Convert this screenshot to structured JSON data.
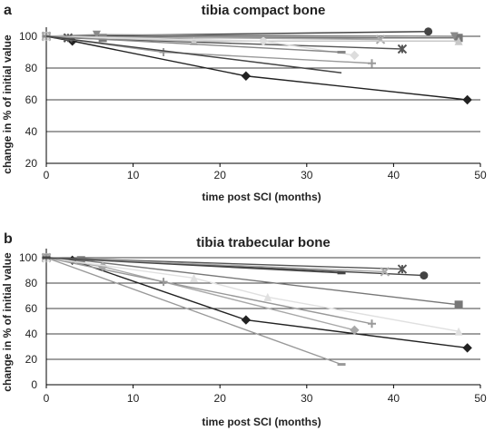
{
  "chart_data": [
    {
      "panel": "a",
      "type": "line",
      "title": "tibia compact bone",
      "xlabel": "time post SCI (months)",
      "ylabel": "change in % of initial value",
      "xlim": [
        0,
        50
      ],
      "ylim": [
        20,
        110
      ],
      "xticks": [
        "0",
        "10",
        "20",
        "30",
        "40",
        "50"
      ],
      "yticks": [
        "20",
        "40",
        "60",
        "80",
        "100"
      ],
      "grid": "horizontal",
      "series": [
        {
          "marker": "diamond",
          "color": "#222222",
          "points": [
            [
              0,
              100
            ],
            [
              3,
              97
            ],
            [
              23,
              75
            ],
            [
              48.5,
              60
            ]
          ]
        },
        {
          "marker": "circle",
          "color": "#444444",
          "points": [
            [
              0,
              100
            ],
            [
              44,
              103
            ]
          ]
        },
        {
          "marker": "square",
          "color": "#777777",
          "points": [
            [
              0,
              100
            ],
            [
              6.5,
              99
            ],
            [
              47.5,
              99
            ]
          ]
        },
        {
          "marker": "triangle-down",
          "color": "#8a8a8a",
          "points": [
            [
              0,
              100
            ],
            [
              5.8,
              101
            ],
            [
              47,
              100
            ]
          ]
        },
        {
          "marker": "asterisk",
          "color": "#555555",
          "points": [
            [
              0,
              100
            ],
            [
              2.5,
              99
            ],
            [
              41,
              92
            ]
          ]
        },
        {
          "marker": "cross",
          "color": "#aaaaaa",
          "points": [
            [
              0,
              100
            ],
            [
              38.5,
              98
            ]
          ]
        },
        {
          "marker": "triangle",
          "color": "#c8c8c8",
          "points": [
            [
              0,
              100
            ],
            [
              17,
              97
            ],
            [
              47.5,
              97
            ]
          ]
        },
        {
          "marker": "diamond",
          "color": "#dddddd",
          "points": [
            [
              0,
              100
            ],
            [
              25,
              97
            ],
            [
              35.5,
              88
            ]
          ]
        },
        {
          "marker": "plus",
          "color": "#999999",
          "points": [
            [
              0,
              100
            ],
            [
              13.5,
              90
            ],
            [
              37.5,
              83
            ]
          ]
        },
        {
          "marker": "dash",
          "color": "#888888",
          "points": [
            [
              0,
              100
            ],
            [
              34,
              90
            ]
          ]
        },
        {
          "marker": "none",
          "color": "#444444",
          "points": [
            [
              0,
              100
            ],
            [
              34,
              77
            ]
          ]
        }
      ]
    },
    {
      "panel": "b",
      "type": "line",
      "title": "tibia trabecular bone",
      "xlabel": "time post SCI (months)",
      "ylabel": "change in % of initial value",
      "xlim": [
        0,
        50
      ],
      "ylim": [
        0,
        110
      ],
      "xticks": [
        "0",
        "10",
        "20",
        "30",
        "40",
        "50"
      ],
      "yticks": [
        "0",
        "20",
        "40",
        "60",
        "80",
        "100"
      ],
      "grid": "horizontal",
      "series": [
        {
          "marker": "diamond",
          "color": "#222222",
          "points": [
            [
              0,
              100
            ],
            [
              3,
              98
            ],
            [
              23,
              51
            ],
            [
              48.5,
              29
            ]
          ]
        },
        {
          "marker": "circle",
          "color": "#444444",
          "points": [
            [
              0,
              100
            ],
            [
              43.5,
              86
            ]
          ]
        },
        {
          "marker": "square",
          "color": "#777777",
          "points": [
            [
              0,
              100
            ],
            [
              4,
              98
            ],
            [
              47.5,
              63
            ]
          ]
        },
        {
          "marker": "asterisk",
          "color": "#555555",
          "points": [
            [
              0,
              100
            ],
            [
              41,
              91
            ]
          ]
        },
        {
          "marker": "cross",
          "color": "#aaaaaa",
          "points": [
            [
              0,
              100
            ],
            [
              39,
              89
            ]
          ]
        },
        {
          "marker": "diamond",
          "color": "#a8a8a8",
          "points": [
            [
              0,
              100
            ],
            [
              6.5,
              93
            ],
            [
              35.5,
              43
            ]
          ]
        },
        {
          "marker": "triangle",
          "color": "#e0e0e0",
          "points": [
            [
              0,
              100
            ],
            [
              17,
              84
            ],
            [
              25.5,
              69
            ],
            [
              47.5,
              42
            ]
          ]
        },
        {
          "marker": "plus",
          "color": "#999999",
          "points": [
            [
              0,
              100
            ],
            [
              13.5,
              81
            ],
            [
              37.5,
              48
            ]
          ]
        },
        {
          "marker": "dash",
          "color": "#999999",
          "points": [
            [
              0,
              100
            ],
            [
              34,
              16
            ]
          ]
        },
        {
          "marker": "dash",
          "color": "#444444",
          "points": [
            [
              0,
              100
            ],
            [
              34,
              88
            ]
          ]
        }
      ]
    }
  ],
  "panels": {
    "a": {
      "letter": "a"
    },
    "b": {
      "letter": "b"
    }
  }
}
